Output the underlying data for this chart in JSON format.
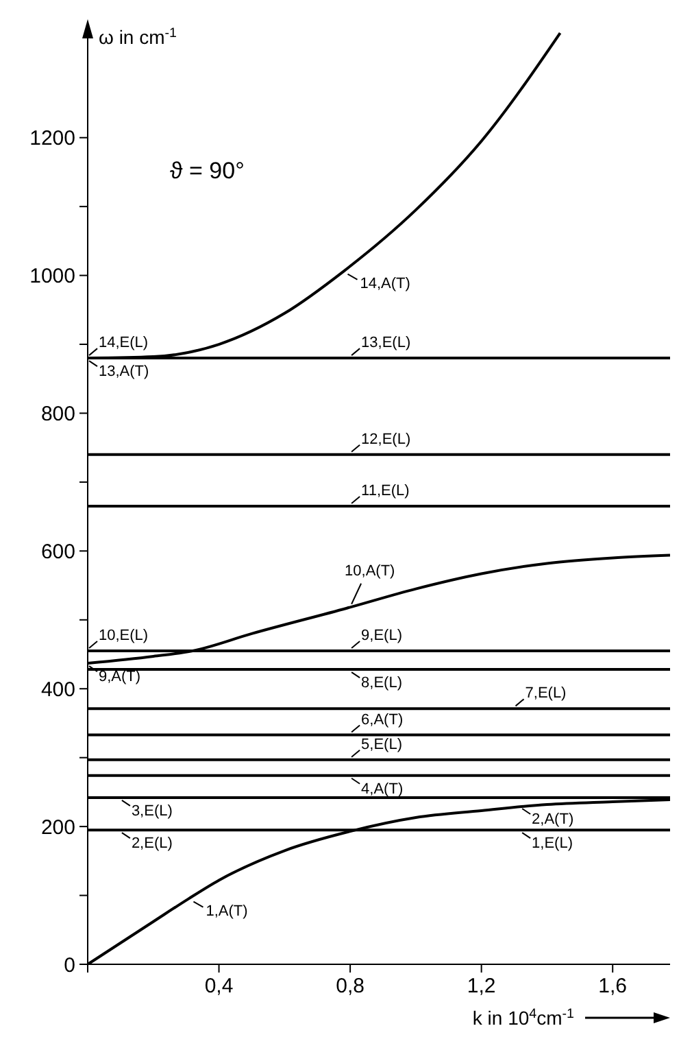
{
  "chart_data": {
    "type": "line",
    "xlabel": "k in 10$^{4}$cm$^{-1}$",
    "ylabel": "ω in cm$^{-1}$",
    "xlim": [
      0,
      1.775
    ],
    "ylim": [
      0,
      1360
    ],
    "xticks": [
      {
        "value": 0,
        "label": null
      },
      {
        "value": 0.4,
        "label": "0,4"
      },
      {
        "value": 0.8,
        "label": "0,8"
      },
      {
        "value": 1.2,
        "label": "1,2"
      },
      {
        "value": 1.6,
        "label": "1,6"
      }
    ],
    "yticks": [
      0,
      {
        "value": 100,
        "label": null
      },
      200,
      {
        "value": 300,
        "label": null
      },
      400,
      {
        "value": 500,
        "label": null
      },
      600,
      {
        "value": 700,
        "label": null
      },
      800,
      {
        "value": 900,
        "label": null
      },
      1000,
      {
        "value": 1100,
        "label": null
      },
      1200
    ],
    "grid": false,
    "marker": "none",
    "line_style": "solid",
    "series": [
      {
        "color": "#000000",
        "x": [
          0,
          0.2,
          0.307,
          0.4,
          0.6,
          0.8,
          1.0,
          1.2,
          1.4,
          1.6,
          1.775
        ],
        "values": [
          0,
          62,
          95,
          122,
          165,
          193,
          213,
          223,
          232,
          236,
          239
        ]
      },
      {
        "color": "#000000",
        "x": [
          0,
          1.775
        ],
        "values": [
          195,
          195
        ]
      },
      {
        "color": "#000000",
        "x": [
          0,
          1.775
        ],
        "values": [
          242,
          242
        ]
      },
      {
        "color": "#000000",
        "x": [
          0,
          1.775
        ],
        "values": [
          274,
          274
        ]
      },
      {
        "color": "#000000",
        "x": [
          0,
          1.775
        ],
        "values": [
          297,
          297
        ]
      },
      {
        "color": "#000000",
        "x": [
          0,
          1.775
        ],
        "values": [
          333,
          333
        ]
      },
      {
        "color": "#000000",
        "x": [
          0,
          1.775
        ],
        "values": [
          371,
          371
        ]
      },
      {
        "color": "#000000",
        "x": [
          0,
          1.775
        ],
        "values": [
          428,
          428
        ]
      },
      {
        "color": "#000000",
        "x": [
          0,
          1.775
        ],
        "values": [
          455,
          455
        ]
      },
      {
        "color": "#000000",
        "x": [
          0,
          0.2,
          0.32,
          0.5,
          0.79,
          1.0,
          1.2,
          1.4,
          1.6,
          1.775
        ],
        "values": [
          437,
          447,
          455,
          480,
          517,
          545,
          567,
          582,
          590,
          594
        ]
      },
      {
        "color": "#000000",
        "x": [
          0,
          1.775
        ],
        "values": [
          665,
          665
        ]
      },
      {
        "color": "#000000",
        "x": [
          0,
          1.775
        ],
        "values": [
          740,
          740
        ]
      },
      {
        "color": "#000000",
        "x": [
          0,
          1.775
        ],
        "values": [
          880,
          880
        ]
      },
      {
        "color": "#000000",
        "x": [
          0,
          0.2,
          0.4,
          0.6,
          0.78,
          1.0,
          1.2,
          1.44
        ],
        "values": [
          880,
          882,
          900,
          945,
          1006,
          1095,
          1195,
          1352
        ]
      }
    ],
    "annotations": [
      "ϑ = 90°",
      {
        "text": "14,A(T)",
        "x": 0.78,
        "y": 1006
      },
      {
        "text": "14,E(L)",
        "x": 0,
        "y": 880
      },
      {
        "text": "13,E(L)",
        "x": 0.8,
        "y": 880
      },
      {
        "text": "13,A(T)",
        "x": 0,
        "y": 880
      },
      {
        "text": "12,E(L)",
        "x": 0.8,
        "y": 740
      },
      {
        "text": "11,E(L)",
        "x": 0.8,
        "y": 665
      },
      {
        "text": "10,A(T)",
        "x": 0.8,
        "y": 517
      },
      {
        "text": "10,E(L)",
        "x": 0,
        "y": 455
      },
      {
        "text": "9,E(L)",
        "x": 0.8,
        "y": 455
      },
      {
        "text": "9,A(T)",
        "x": 0,
        "y": 437
      },
      {
        "text": "8,E(L)",
        "x": 0.8,
        "y": 428
      },
      {
        "text": "7,E(L)",
        "x": 1.3,
        "y": 371
      },
      {
        "text": "6,A(T)",
        "x": 0.8,
        "y": 333
      },
      {
        "text": "5,E(L)",
        "x": 0.8,
        "y": 297
      },
      {
        "text": "4,A(T)",
        "x": 0.8,
        "y": 274
      },
      {
        "text": "3,E(L)",
        "x": 0.1,
        "y": 242
      },
      {
        "text": "2,E(L)",
        "x": 0.1,
        "y": 195
      },
      {
        "text": "2,A(T)",
        "x": 1.32,
        "y": 230
      },
      {
        "text": "1,E(L)",
        "x": 1.32,
        "y": 195
      },
      {
        "text": "1,A(T)",
        "x": 0.31,
        "y": 95
      }
    ]
  }
}
